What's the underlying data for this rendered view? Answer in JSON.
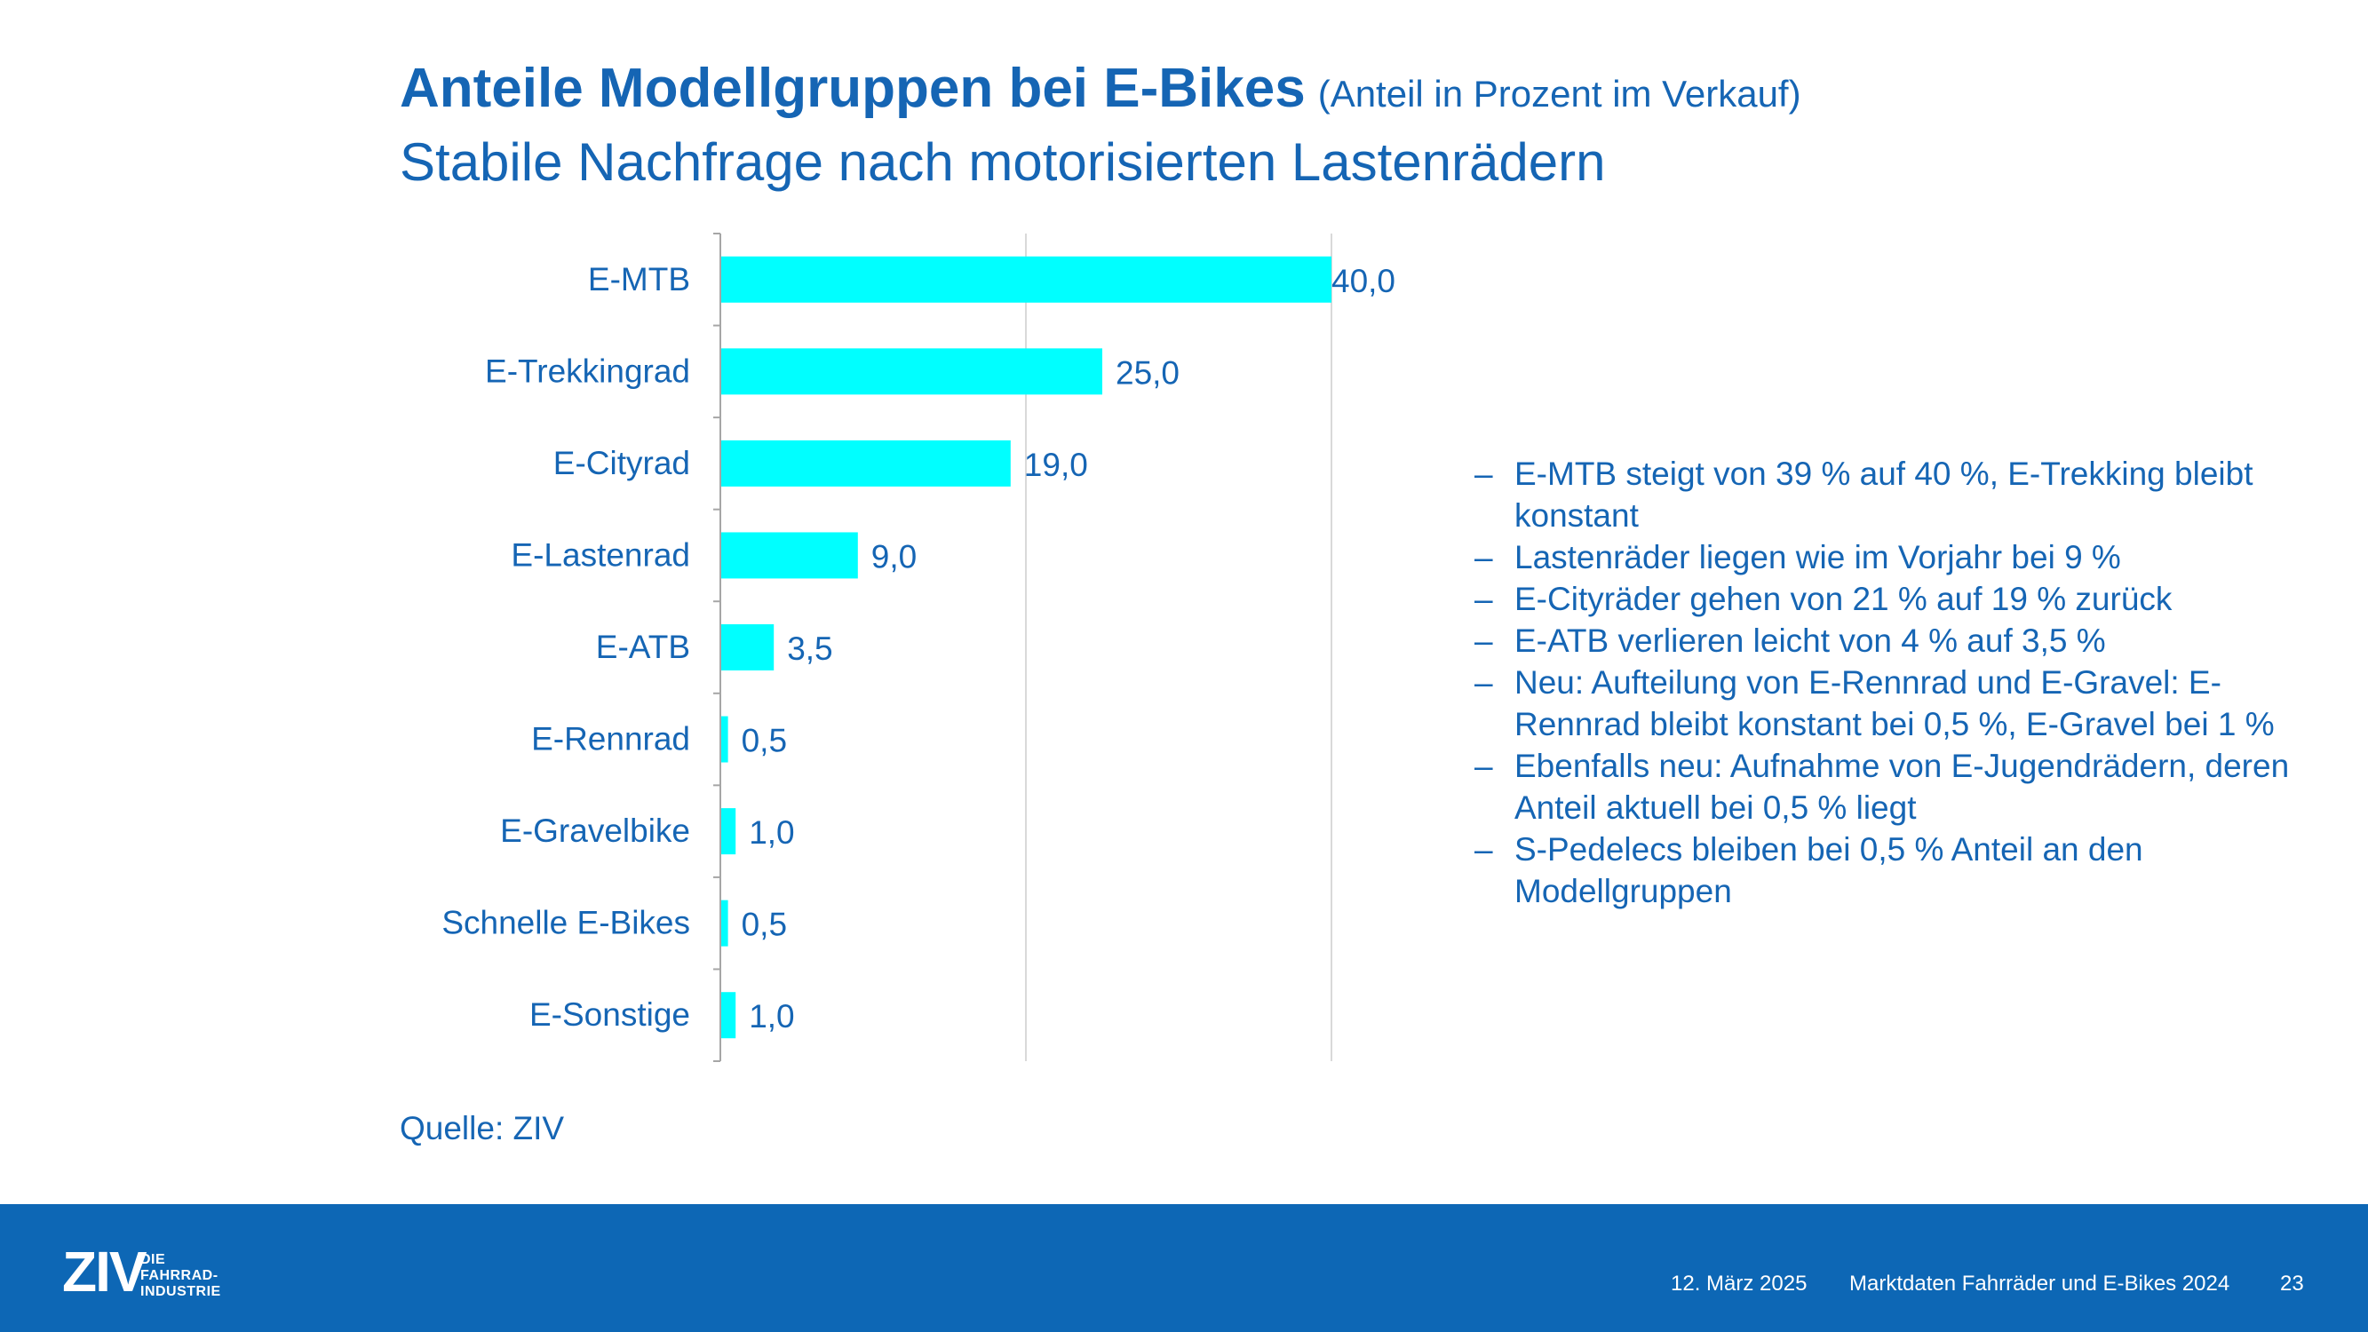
{
  "header": {
    "title": "Anteile Modellgruppen bei E-Bikes",
    "title_note": "(Anteil in Prozent im Verkauf)",
    "subtitle": "Stabile Nachfrage nach motorisierten Lastenrädern"
  },
  "chart_data": {
    "type": "bar",
    "orientation": "horizontal",
    "categories": [
      "E-MTB",
      "E-Trekkingrad",
      "E-Cityrad",
      "E-Lastenrad",
      "E-ATB",
      "E-Rennrad",
      "E-Gravelbike",
      "Schnelle E-Bikes",
      "E-Sonstige"
    ],
    "values": [
      40.0,
      25.0,
      19.0,
      9.0,
      3.5,
      0.5,
      1.0,
      0.5,
      1.0
    ],
    "value_labels": [
      "40,0",
      "25,0",
      "19,0",
      "9,0",
      "3,5",
      "0,5",
      "1,0",
      "0,5",
      "1,0"
    ],
    "xlim": [
      0,
      40
    ],
    "gridlines": [
      20,
      40
    ],
    "grid": true,
    "bar_color": "#00ffff",
    "text_color": "#1565b4"
  },
  "bullets": [
    "E-MTB steigt von 39 % auf 40 %, E-Trekking bleibt konstant",
    "Lastenräder liegen wie im Vorjahr bei 9 %",
    "E-Cityräder gehen von 21 % auf 19 % zurück",
    "E-ATB verlieren leicht von 4 % auf 3,5 %",
    "Neu: Aufteilung von E-Rennrad und E-Gravel: E-Rennrad bleibt konstant bei 0,5 %, E-Gravel bei 1 %",
    "Ebenfalls neu: Aufnahme von E-Jugendrädern, deren Anteil aktuell bei 0,5 % liegt",
    "S-Pedelecs bleiben bei 0,5 % Anteil an den Modellgruppen"
  ],
  "bullet_marker": "–",
  "source": "Quelle: ZIV",
  "footer": {
    "logo": "ZIV",
    "logo_subtitle": [
      "DIE",
      "FAHRRAD-",
      "INDUSTRIE"
    ],
    "date": "12. März 2025",
    "title": "Marktdaten Fahrräder und E-Bikes 2024",
    "page": "23",
    "background_color": "#0d67b5"
  }
}
